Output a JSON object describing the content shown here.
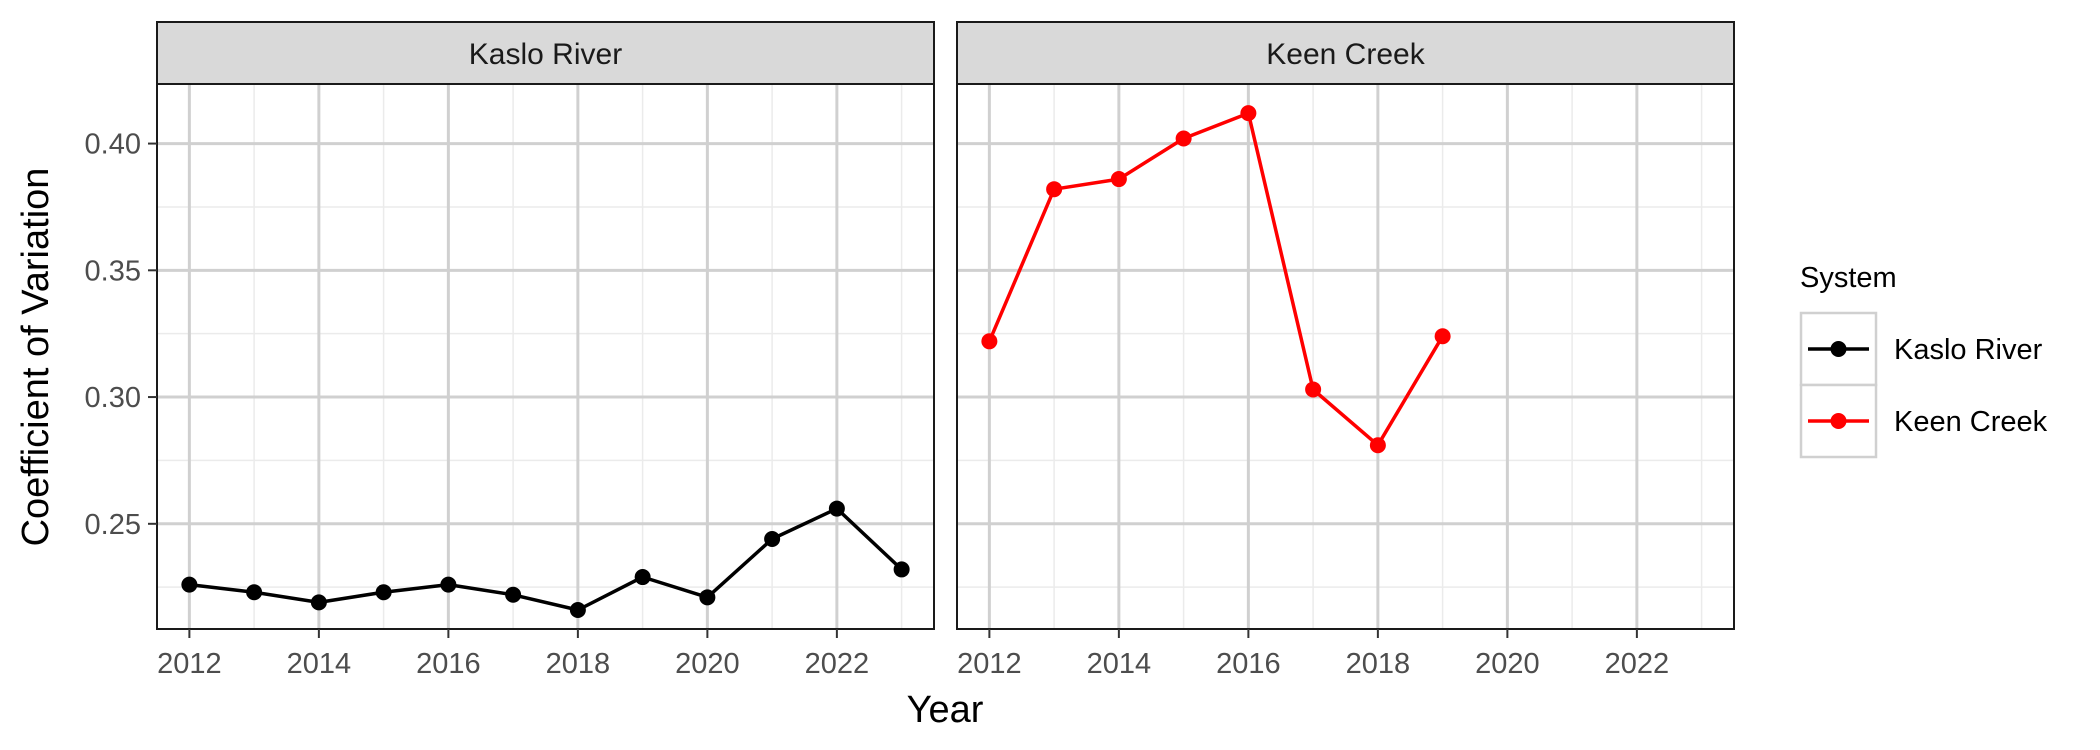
{
  "chart_data": {
    "type": "line",
    "facets": [
      "Kaslo River",
      "Keen Creek"
    ],
    "xlabel": "Year",
    "ylabel": "Coefficient of Variation",
    "xlim": [
      2011.5,
      2023.5
    ],
    "ylim": [
      0.2085,
      0.4235
    ],
    "x_ticks": [
      2012,
      2014,
      2016,
      2018,
      2020,
      2022
    ],
    "y_ticks": [
      0.25,
      0.3,
      0.35,
      0.4
    ],
    "y_tick_labels": [
      "0.25",
      "0.30",
      "0.35",
      "0.40"
    ],
    "grid": true,
    "legend": {
      "title": "System",
      "position": "right"
    },
    "series": [
      {
        "name": "Kaslo River",
        "facet": "Kaslo River",
        "color": "#000000",
        "x": [
          2012,
          2013,
          2014,
          2015,
          2016,
          2017,
          2018,
          2019,
          2020,
          2021,
          2022,
          2023
        ],
        "values": [
          0.226,
          0.223,
          0.219,
          0.223,
          0.226,
          0.222,
          0.216,
          0.229,
          0.221,
          0.244,
          0.256,
          0.232
        ]
      },
      {
        "name": "Keen Creek",
        "facet": "Keen Creek",
        "color": "#ff0000",
        "x": [
          2012,
          2013,
          2014,
          2015,
          2016,
          2017,
          2018,
          2019
        ],
        "values": [
          0.322,
          0.382,
          0.386,
          0.402,
          0.412,
          0.303,
          0.281,
          0.324
        ]
      }
    ]
  }
}
